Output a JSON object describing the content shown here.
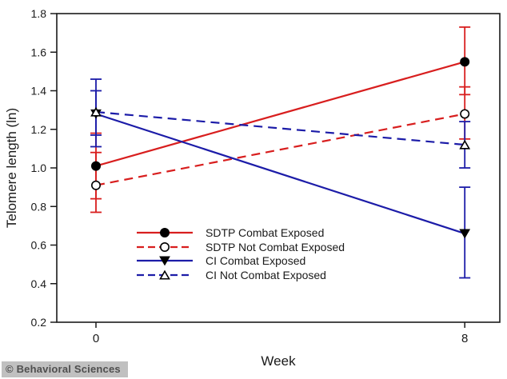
{
  "page": {
    "background": "#ffffff"
  },
  "watermark": {
    "text": "© Behavioral Sciences",
    "bg_color": "#c0c0c0",
    "text_color": "#4f4f4f"
  },
  "chart_data": {
    "type": "line",
    "title": "",
    "xlabel": "Week",
    "ylabel": "Telomere length (ln)",
    "x": [
      0,
      8
    ],
    "x_tick_labels": [
      "0",
      "8"
    ],
    "xlim": [
      -0.85,
      8.76
    ],
    "y_ticks": [
      1.8,
      1.6,
      1.4,
      1.2,
      1.0,
      0.8,
      0.6,
      0.4,
      0.2
    ],
    "ylim": [
      0.2,
      1.8
    ],
    "grid": false,
    "error_bars": true,
    "legend_position": "inside-lower-left",
    "colors": {
      "red": "#d81e1e",
      "blue": "#1c1ca8",
      "marker": "#000000",
      "axis": "#1a1a1a"
    },
    "series": [
      {
        "name": "SDTP Combat Exposed",
        "color_key": "red",
        "line_style": "solid",
        "marker": "circle-filled",
        "values": [
          1.01,
          1.55
        ],
        "error_low": [
          0.84,
          1.38
        ],
        "error_high": [
          1.18,
          1.73
        ]
      },
      {
        "name": "SDTP Not Combat Exposed",
        "color_key": "red",
        "line_style": "dashed",
        "marker": "circle-open",
        "values": [
          0.91,
          1.28
        ],
        "error_low": [
          0.77,
          1.15
        ],
        "error_high": [
          1.08,
          1.42
        ]
      },
      {
        "name": "CI Combat Exposed",
        "color_key": "blue",
        "line_style": "solid",
        "marker": "triangle-down-filled",
        "values": [
          1.28,
          0.66
        ],
        "error_low": [
          1.11,
          0.43
        ],
        "error_high": [
          1.46,
          0.9
        ]
      },
      {
        "name": "CI Not Combat Exposed",
        "color_key": "blue",
        "line_style": "dashed",
        "marker": "triangle-up-open",
        "values": [
          1.29,
          1.12
        ],
        "error_low": [
          1.17,
          1.0
        ],
        "error_high": [
          1.4,
          1.24
        ]
      }
    ]
  }
}
